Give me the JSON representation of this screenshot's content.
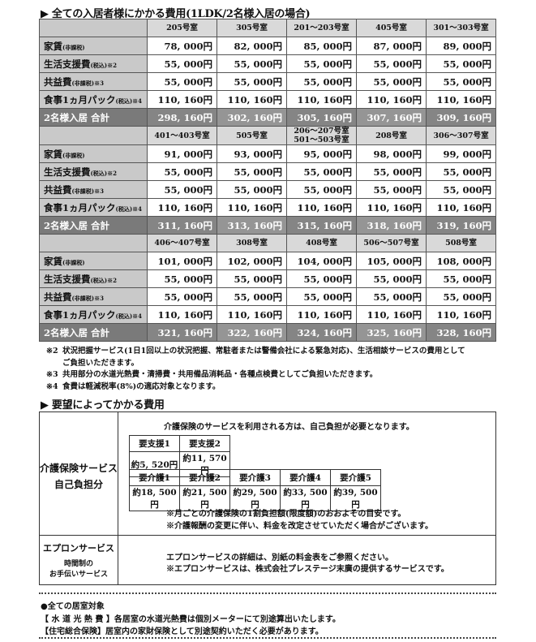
{
  "section1_title": "▶ 全ての入居者様にかかる費用(1LDK/2名様入居の場合)",
  "row_labels": [
    {
      "main": "家賃",
      "sub": "(非課税)"
    },
    {
      "main": "生活支援費",
      "sub": "(税込)※2"
    },
    {
      "main": "共益費",
      "sub": "(非課税)※3"
    },
    {
      "main": "食事1ヵ月パック",
      "sub": "(税込)※4"
    }
  ],
  "total_label": "2名様入居 合計",
  "blocks": [
    {
      "rooms": [
        "205号室",
        "305号室",
        "201～203号室",
        "405号室",
        "301～303号室"
      ],
      "rows": [
        [
          "78, 000円",
          "82, 000円",
          "85, 000円",
          "87, 000円",
          "89, 000円"
        ],
        [
          "55, 000円",
          "55, 000円",
          "55, 000円",
          "55, 000円",
          "55, 000円"
        ],
        [
          "55, 000円",
          "55, 000円",
          "55, 000円",
          "55, 000円",
          "55, 000円"
        ],
        [
          "110, 160円",
          "110, 160円",
          "110, 160円",
          "110, 160円",
          "110, 160円"
        ]
      ],
      "totals": [
        "298, 160円",
        "302, 160円",
        "305, 160円",
        "307, 160円",
        "309, 160円"
      ]
    },
    {
      "rooms": [
        "401～403号室",
        "505号室",
        "206～207号室\n501～503号室",
        "208号室",
        "306～307号室"
      ],
      "rows": [
        [
          "91, 000円",
          "93, 000円",
          "95, 000円",
          "98, 000円",
          "99, 000円"
        ],
        [
          "55, 000円",
          "55, 000円",
          "55, 000円",
          "55, 000円",
          "55, 000円"
        ],
        [
          "55, 000円",
          "55, 000円",
          "55, 000円",
          "55, 000円",
          "55, 000円"
        ],
        [
          "110, 160円",
          "110, 160円",
          "110, 160円",
          "110, 160円",
          "110, 160円"
        ]
      ],
      "totals": [
        "311, 160円",
        "313, 160円",
        "315, 160円",
        "318, 160円",
        "319, 160円"
      ]
    },
    {
      "rooms": [
        "406～407号室",
        "308号室",
        "408号室",
        "506～507号室",
        "508号室"
      ],
      "rows": [
        [
          "101, 000円",
          "102, 000円",
          "104, 000円",
          "105, 000円",
          "108, 000円"
        ],
        [
          "55, 000円",
          "55, 000円",
          "55, 000円",
          "55, 000円",
          "55, 000円"
        ],
        [
          "55, 000円",
          "55, 000円",
          "55, 000円",
          "55, 000円",
          "55, 000円"
        ],
        [
          "110, 160円",
          "110, 160円",
          "110, 160円",
          "110, 160円",
          "110, 160円"
        ]
      ],
      "totals": [
        "321, 160円",
        "322, 160円",
        "324, 160円",
        "325, 160円",
        "328, 160円"
      ]
    }
  ],
  "notes": [
    {
      "mark": "※2",
      "text": "状況把握サービス(1日1回以上の状況把握、常駐者または警備会社による緊急対応)、生活相談サービスの費用として",
      "cont": "ご負担いただきます。"
    },
    {
      "mark": "※3",
      "text": "共用部分の水道光熱費・清掃費・共用備品消耗品・各種点検費としてご負担いただきます。"
    },
    {
      "mark": "※4",
      "text": "食費は軽減税率(8%)の適応対象となります。"
    }
  ],
  "section2_title": "▶ 要望によってかかる費用",
  "care": {
    "label1": "介護保険サービス",
    "label2": "自己負担分",
    "intro": "介護保険のサービスを利用される方は、自己負担が必要となります。",
    "support_levels": [
      "要支援1",
      "要支援2"
    ],
    "support_costs": [
      "約5, 520円",
      "約11, 570円"
    ],
    "care_levels": [
      "要介護1",
      "要介護2",
      "要介護3",
      "要介護4",
      "要介護5"
    ],
    "care_costs": [
      "約18, 500円",
      "約21, 500円",
      "約29, 500円",
      "約33, 500円",
      "約39, 500円"
    ],
    "note1": "※月ごとの介護保険の1割負担額(限度額)のおおよその目安です。",
    "note2": "※介護報酬の変更に伴い、料金を改定させていただく場合がございます。"
  },
  "apron": {
    "label1": "エプロンサービス",
    "label2": "時間制の",
    "label3": "お手伝いサービス",
    "text1": "エプロンサービスの詳細は、別紙の料金表をご参照ください。",
    "text2": "※エプロンサービスは、株式会社プレステージ末廣の提供するサービスです。"
  },
  "all_rooms": {
    "heading": "●全ての居室対象",
    "items": [
      {
        "key": "【 水 道 光 熱 費 】",
        "text": "各居室の水道光熱費は個別メーターにて別途算出いたします。"
      },
      {
        "key": "【住宅総合保険】",
        "text": "居室内の家財保険として別途契約いただく必要があります。"
      }
    ]
  }
}
